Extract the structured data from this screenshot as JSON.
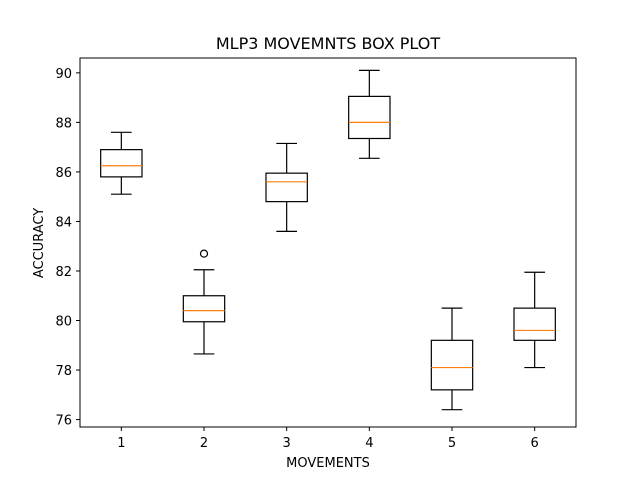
{
  "chart_data": {
    "type": "box",
    "title": "MLP3 MOVEMNTS BOX PLOT",
    "xlabel": "MOVEMENTS",
    "ylabel": "ACCURACY",
    "ylim": [
      75.7,
      90.6
    ],
    "yticks": [
      76,
      78,
      80,
      82,
      84,
      86,
      88,
      90
    ],
    "categories": [
      "1",
      "2",
      "3",
      "4",
      "5",
      "6"
    ],
    "boxes": [
      {
        "category": "1",
        "whisker_low": 85.1,
        "q1": 85.8,
        "median": 86.25,
        "q3": 86.9,
        "whisker_high": 87.6,
        "outliers": []
      },
      {
        "category": "2",
        "whisker_low": 78.65,
        "q1": 79.95,
        "median": 80.4,
        "q3": 81.0,
        "whisker_high": 82.05,
        "outliers": [
          82.7
        ]
      },
      {
        "category": "3",
        "whisker_low": 83.6,
        "q1": 84.8,
        "median": 85.6,
        "q3": 85.95,
        "whisker_high": 87.15,
        "outliers": []
      },
      {
        "category": "4",
        "whisker_low": 86.55,
        "q1": 87.35,
        "median": 88.0,
        "q3": 89.05,
        "whisker_high": 90.1,
        "outliers": []
      },
      {
        "category": "5",
        "whisker_low": 76.4,
        "q1": 77.2,
        "median": 78.1,
        "q3": 79.2,
        "whisker_high": 80.5,
        "outliers": []
      },
      {
        "category": "6",
        "whisker_low": 78.1,
        "q1": 79.2,
        "median": 79.6,
        "q3": 80.5,
        "whisker_high": 81.95,
        "outliers": []
      }
    ],
    "colors": {
      "box": "#000000",
      "median": "#ff7f0e",
      "outlier": "#000000"
    },
    "grid": false,
    "legend": "none"
  }
}
